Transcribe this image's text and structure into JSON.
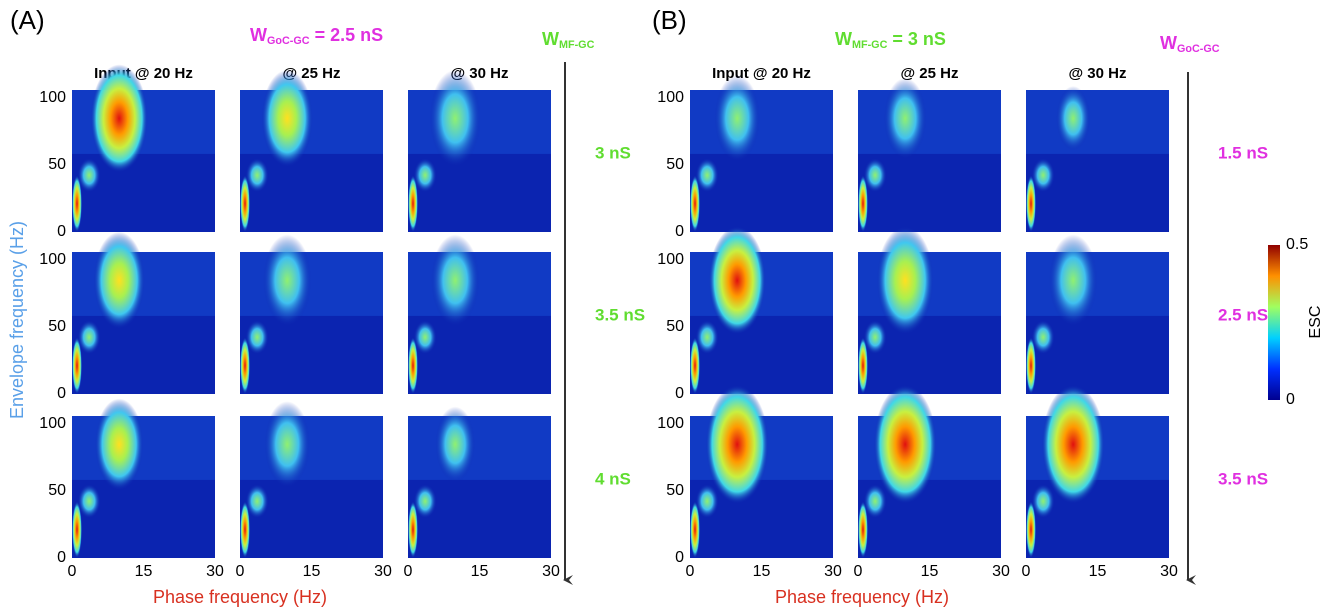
{
  "y_label": "Envelope frequency (Hz)",
  "colorbar": {
    "label": "ESC",
    "max": "0.5",
    "min": "0"
  },
  "panels": [
    {
      "label": "(A)",
      "title": {
        "symbol": "W",
        "subscript": "GoC-GC",
        "text": " = 2.5 nS"
      },
      "arrow_label": {
        "symbol": "W",
        "subscript": "MF-GC"
      },
      "columns": [
        "Input @ 20 Hz",
        "@ 25 Hz",
        "@ 30 Hz"
      ],
      "rows": [
        "3 nS",
        "3.5 nS",
        "4 nS"
      ],
      "y_ticks": [
        "100",
        "50",
        "0"
      ],
      "x_ticks": [
        "0",
        "15",
        "30"
      ],
      "x_label": "Phase frequency (Hz)"
    },
    {
      "label": "(B)",
      "title": {
        "symbol": "W",
        "subscript": "MF-GC",
        "text": " = 3 nS"
      },
      "arrow_label": {
        "symbol": "W",
        "subscript": "GoC-GC"
      },
      "columns": [
        "Input @ 20 Hz",
        "@ 25 Hz",
        "@ 30 Hz"
      ],
      "rows": [
        "1.5 nS",
        "2.5 nS",
        "3.5 nS"
      ],
      "y_ticks": [
        "100",
        "50",
        "0"
      ],
      "x_ticks": [
        "0",
        "15",
        "30"
      ],
      "x_label": "Phase frequency (Hz)"
    }
  ]
}
